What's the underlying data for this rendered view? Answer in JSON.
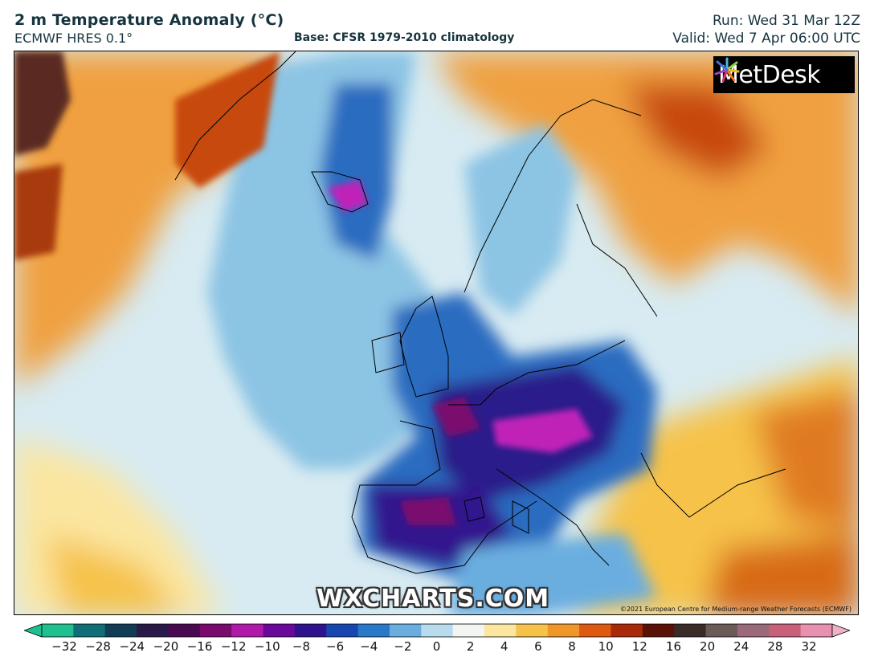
{
  "header": {
    "title": "2 m Temperature Anomaly (°C)",
    "model": "ECMWF HRES 0.1°",
    "base": "Base: CFSR 1979-2010 climatology",
    "run": "Run: Wed 31 Mar 12Z",
    "valid": "Valid: Wed 7 Apr 06:00 UTC"
  },
  "logo": {
    "text": "MetDesk",
    "icon": "metdesk-burst-icon"
  },
  "watermark": "WXCHARTS.COM",
  "credit": "©2021 European Centre for Medium-range Weather Forecasts (ECMWF)",
  "colorbar": {
    "ticks": [
      "−32",
      "−28",
      "−24",
      "−20",
      "−16",
      "−12",
      "−10",
      "−8",
      "−6",
      "−4",
      "−2",
      "0",
      "2",
      "4",
      "6",
      "8",
      "10",
      "12",
      "16",
      "20",
      "24",
      "28",
      "32"
    ],
    "colors": [
      "#1fbf8f",
      "#0f6e78",
      "#123c55",
      "#2a1a4a",
      "#4a0a52",
      "#7a0a6e",
      "#b01aa8",
      "#6a0a9a",
      "#30128e",
      "#1746b0",
      "#2a78c8",
      "#6aaee0",
      "#b8dcee",
      "#f2f5f0",
      "#fbe6a0",
      "#f6c24a",
      "#f0962a",
      "#de5a10",
      "#a82a08",
      "#5a1208",
      "#3a2a28",
      "#6a5a58",
      "#9a6a7a",
      "#c8607a",
      "#e890b0"
    ],
    "extend_low_color": "#1fbf8f",
    "extend_high_color": "#f0b0c8"
  },
  "map": {
    "region": "North Atlantic and Europe",
    "colors": {
      "ocean_neutral": "#d8ebf2",
      "warm_light": "#fbe6a0",
      "warm": "#f0a040",
      "hot": "#c84a10",
      "very_hot": "#5a2a20",
      "cool": "#8cc4e4",
      "cold": "#2a6cc0",
      "very_cold": "#2a1a8a",
      "extreme_cold": "#c020b8",
      "coast": "#000000"
    }
  }
}
